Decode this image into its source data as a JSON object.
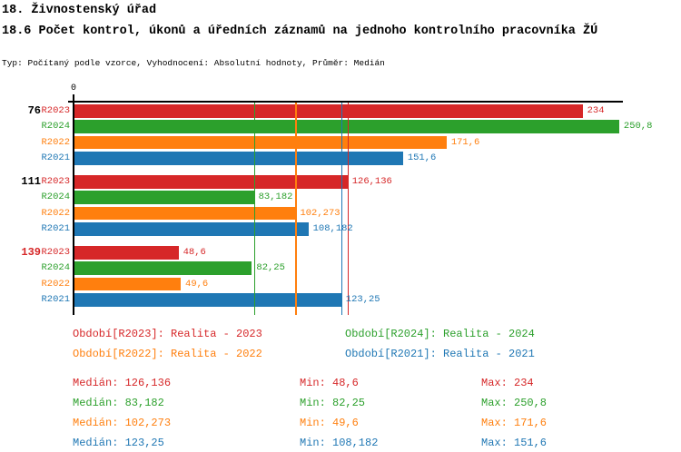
{
  "header": {
    "title": "18. Živnostenský úřad",
    "subtitle": "18.6 Počet kontrol, úkonů a úředních záznamů na jednoho kontrolního pracovníka ŽÚ",
    "meta": "Typ: Počítaný podle vzorce, Vyhodnocení: Absolutní hodnoty, Průměr: Medián"
  },
  "chart_data": {
    "type": "bar",
    "orientation": "horizontal",
    "value_axis": {
      "origin_label": "0",
      "xlim": [
        0,
        252
      ],
      "gridlines": "median-lines-per-series"
    },
    "legend_position": "bottom-two-columns",
    "series": [
      {
        "id": "R2023",
        "row_label": "R2023",
        "color": "#d62728",
        "legend_label": "Období[R2023]: Realita - 2023",
        "median": 126.136,
        "stats": {
          "median": "Medián: 126,136",
          "min": "Min: 48,6",
          "max": "Max: 234"
        }
      },
      {
        "id": "R2024",
        "row_label": "R2024",
        "color": "#2ca02c",
        "legend_label": "Období[R2024]: Realita - 2024",
        "median": 83.182,
        "stats": {
          "median": "Medián: 83,182",
          "min": "Min: 82,25",
          "max": "Max: 250,8"
        }
      },
      {
        "id": "R2022",
        "row_label": "R2022",
        "color": "#ff7f0e",
        "legend_label": "Období[R2022]: Realita - 2022",
        "median": 102.273,
        "stats": {
          "median": "Medián: 102,273",
          "min": "Min: 49,6",
          "max": "Max: 171,6"
        }
      },
      {
        "id": "R2021",
        "row_label": "R2021",
        "color": "#1f77b4",
        "legend_label": "Období[R2021]: Realita - 2021",
        "median": 123.25,
        "stats": {
          "median": "Medián: 123,25",
          "min": "Min: 108,182",
          "max": "Max: 151,6"
        }
      }
    ],
    "groups": [
      {
        "label": "76",
        "label_color": "#000000",
        "values": [
          234,
          250.8,
          171.6,
          151.6
        ],
        "value_labels": [
          "234",
          "250,8",
          "171,6",
          "151,6"
        ]
      },
      {
        "label": "111",
        "label_color": "#000000",
        "values": [
          126.136,
          83.182,
          102.273,
          108.182
        ],
        "value_labels": [
          "126,136",
          "83,182",
          "102,273",
          "108,182"
        ]
      },
      {
        "label": "139",
        "label_color": "#d62728",
        "values": [
          48.6,
          82.25,
          49.6,
          123.25
        ],
        "value_labels": [
          "48,6",
          "82,25",
          "49,6",
          "123,25"
        ]
      }
    ]
  }
}
